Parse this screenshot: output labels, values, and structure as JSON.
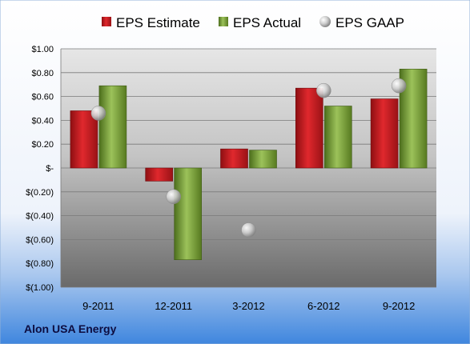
{
  "chart_data": {
    "type": "bar",
    "categories": [
      "9-2011",
      "12-2011",
      "3-2012",
      "6-2012",
      "9-2012"
    ],
    "series": [
      {
        "name": "EPS Estimate",
        "kind": "bar",
        "values": [
          0.48,
          -0.11,
          0.16,
          0.67,
          0.58
        ],
        "color": "#c0171c"
      },
      {
        "name": "EPS Actual",
        "kind": "bar",
        "values": [
          0.69,
          -0.77,
          0.15,
          0.52,
          0.83
        ],
        "color": "#6e9a2a"
      },
      {
        "name": "EPS GAAP",
        "kind": "marker",
        "values": [
          0.46,
          -0.24,
          -0.52,
          0.65,
          0.69
        ],
        "color": "#b0b0b0"
      }
    ],
    "yticks": [
      "$1.00",
      "$0.80",
      "$0.60",
      "$0.40",
      "$0.20",
      "$-",
      "$(0.20)",
      "$(0.40)",
      "$(0.60)",
      "$(0.80)",
      "$(1.00)"
    ],
    "ylim": [
      -1.0,
      1.0
    ],
    "legend_position": "top",
    "grid": true
  },
  "footer": {
    "company": "Alon USA Energy"
  }
}
